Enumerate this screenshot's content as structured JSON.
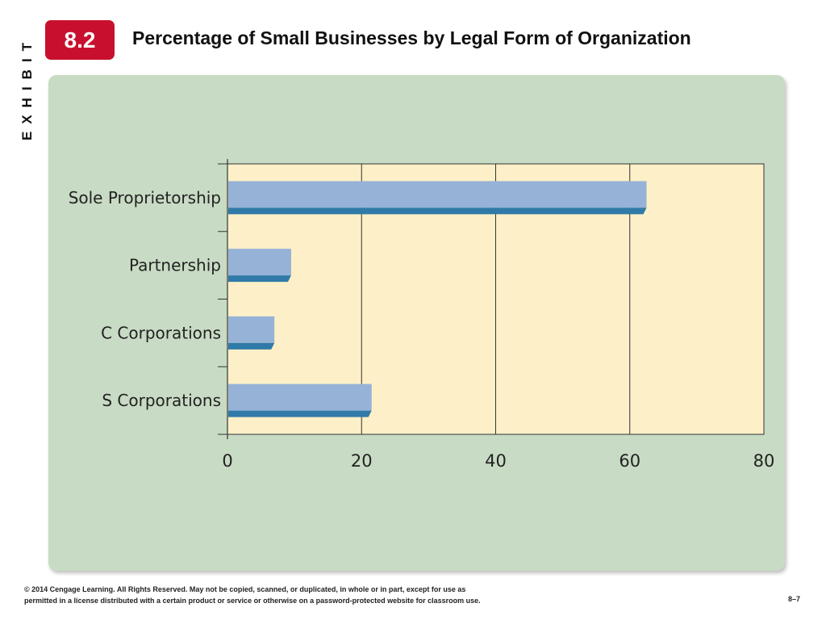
{
  "exhibit_label": "EXHIBIT",
  "exhibit_number": "8.2",
  "title": "Percentage of Small Businesses by Legal Form of Organization",
  "colors": {
    "badge": "#c8102e",
    "panel": "#c8dbc4",
    "plot_background": "#fdf0c8",
    "bar_top": "#97b2d7",
    "bar_bottom": "#2f7aa8"
  },
  "chart_data": {
    "type": "bar",
    "orientation": "horizontal",
    "categories": [
      "Sole Proprietorship",
      "Partnership",
      "C Corporations",
      "S Corporations"
    ],
    "values": [
      62.5,
      9.5,
      7,
      21.5
    ],
    "xlim": [
      0,
      80
    ],
    "xticks": [
      "0",
      "20",
      "40",
      "60",
      "80"
    ],
    "xtick_values": [
      0,
      20,
      40,
      60,
      80
    ],
    "title": "",
    "xlabel": "",
    "ylabel": "",
    "grid": "vertical",
    "legend": "none"
  },
  "footer": {
    "line1": "© 2014 Cengage Learning. All Rights Reserved. May not be copied, scanned, or duplicated, in whole or in part, except for use as",
    "line2": "permitted in a license distributed with a certain product or service or otherwise on a password-protected website for classroom use.",
    "page_number": "8–7"
  }
}
